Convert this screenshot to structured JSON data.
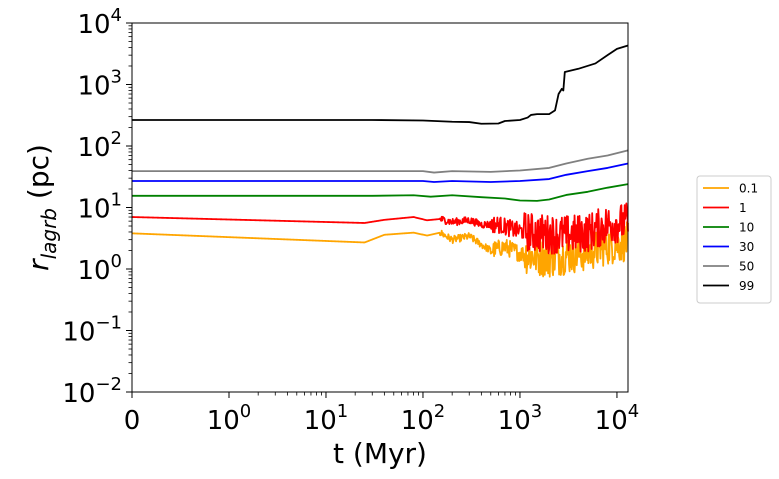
{
  "chart_data": {
    "type": "line",
    "xlabel": "t (Myr)",
    "ylabel_main": "r",
    "ylabel_sub": "lagrb",
    "ylabel_unit": " (pc)",
    "xscale": "symlog",
    "yscale": "log",
    "xlim": [
      0,
      13000
    ],
    "ylim": [
      0.01,
      10000
    ],
    "x_ticks": [
      {
        "value": 0,
        "base": "0",
        "exp": ""
      },
      {
        "value": 1,
        "base": "10",
        "exp": "0"
      },
      {
        "value": 10,
        "base": "10",
        "exp": "1"
      },
      {
        "value": 100,
        "base": "10",
        "exp": "2"
      },
      {
        "value": 1000,
        "base": "10",
        "exp": "3"
      },
      {
        "value": 10000,
        "base": "10",
        "exp": "4"
      }
    ],
    "y_ticks": [
      {
        "value": 0.01,
        "base": "10",
        "exp": "−2"
      },
      {
        "value": 0.1,
        "base": "10",
        "exp": "−1"
      },
      {
        "value": 1,
        "base": "10",
        "exp": "0"
      },
      {
        "value": 10,
        "base": "10",
        "exp": "1"
      },
      {
        "value": 100,
        "base": "10",
        "exp": "2"
      },
      {
        "value": 1000,
        "base": "10",
        "exp": "3"
      },
      {
        "value": 10000,
        "base": "10",
        "exp": "4"
      }
    ],
    "legend_position": "outside-right",
    "series": [
      {
        "name": "0.1",
        "color": "#ffa500",
        "noise": true,
        "points": [
          [
            0,
            3.8
          ],
          [
            25,
            2.7
          ],
          [
            40,
            3.6
          ],
          [
            80,
            3.9
          ],
          [
            110,
            3.5
          ],
          [
            150,
            3.9
          ],
          [
            200,
            3.0
          ],
          [
            300,
            3.4
          ],
          [
            400,
            2.5
          ],
          [
            500,
            2.0
          ],
          [
            700,
            2.3
          ],
          [
            1000,
            1.8
          ],
          [
            1500,
            1.6
          ],
          [
            2000,
            1.5
          ],
          [
            3000,
            1.7
          ],
          [
            5000,
            1.9
          ],
          [
            8000,
            2.4
          ],
          [
            13000,
            2.8
          ]
        ]
      },
      {
        "name": "1",
        "color": "#ff0000",
        "noise": true,
        "points": [
          [
            0,
            7.0
          ],
          [
            25,
            5.6
          ],
          [
            40,
            6.3
          ],
          [
            80,
            7.0
          ],
          [
            110,
            6.2
          ],
          [
            150,
            6.5
          ],
          [
            200,
            5.8
          ],
          [
            300,
            6.2
          ],
          [
            400,
            5.3
          ],
          [
            600,
            5.3
          ],
          [
            900,
            4.3
          ],
          [
            1200,
            4.0
          ],
          [
            2000,
            3.7
          ],
          [
            3000,
            3.6
          ],
          [
            5000,
            3.9
          ],
          [
            8000,
            5.3
          ],
          [
            13000,
            5.8
          ]
        ]
      },
      {
        "name": "10",
        "color": "#008000",
        "noise": false,
        "points": [
          [
            0,
            15.5
          ],
          [
            30,
            15.5
          ],
          [
            80,
            15.8
          ],
          [
            120,
            15.0
          ],
          [
            200,
            15.8
          ],
          [
            400,
            14.7
          ],
          [
            700,
            14.0
          ],
          [
            1000,
            13.0
          ],
          [
            1500,
            12.8
          ],
          [
            2000,
            13.5
          ],
          [
            3000,
            16.0
          ],
          [
            5000,
            18.0
          ],
          [
            8000,
            21.0
          ],
          [
            13000,
            24.0
          ]
        ]
      },
      {
        "name": "30",
        "color": "#0000ff",
        "noise": false,
        "points": [
          [
            0,
            27.0
          ],
          [
            50,
            27.0
          ],
          [
            100,
            27.0
          ],
          [
            130,
            26.0
          ],
          [
            200,
            27.0
          ],
          [
            500,
            26.0
          ],
          [
            1000,
            27.0
          ],
          [
            2000,
            29.0
          ],
          [
            3000,
            34.0
          ],
          [
            5000,
            39.0
          ],
          [
            8000,
            44.0
          ],
          [
            13000,
            52.0
          ]
        ]
      },
      {
        "name": "50",
        "color": "#808080",
        "noise": false,
        "points": [
          [
            0,
            39.0
          ],
          [
            50,
            39.0
          ],
          [
            100,
            39.0
          ],
          [
            130,
            37.0
          ],
          [
            200,
            39.0
          ],
          [
            500,
            38.0
          ],
          [
            1000,
            40.0
          ],
          [
            2000,
            44.0
          ],
          [
            3000,
            52.0
          ],
          [
            5000,
            62.0
          ],
          [
            8000,
            70.0
          ],
          [
            13000,
            85.0
          ]
        ]
      },
      {
        "name": "99",
        "color": "#000000",
        "noise": false,
        "points": [
          [
            0,
            265
          ],
          [
            30,
            265
          ],
          [
            100,
            260
          ],
          [
            200,
            248
          ],
          [
            300,
            245
          ],
          [
            400,
            230
          ],
          [
            600,
            232
          ],
          [
            700,
            255
          ],
          [
            1000,
            265
          ],
          [
            1200,
            290
          ],
          [
            1300,
            320
          ],
          [
            1500,
            330
          ],
          [
            2000,
            330
          ],
          [
            2300,
            380
          ],
          [
            2500,
            700
          ],
          [
            2700,
            850
          ],
          [
            2800,
            800
          ],
          [
            2900,
            1600
          ],
          [
            4000,
            1800
          ],
          [
            6000,
            2200
          ],
          [
            8000,
            3000
          ],
          [
            10000,
            3800
          ],
          [
            13000,
            4300
          ]
        ]
      }
    ]
  }
}
